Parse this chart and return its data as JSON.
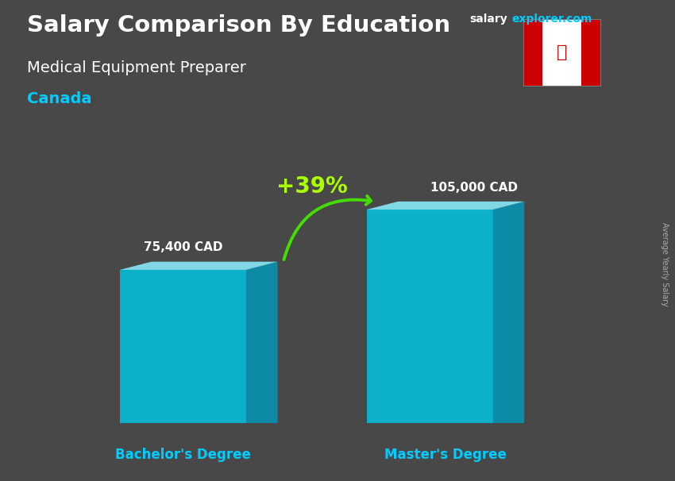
{
  "title_main": "Salary Comparison By Education",
  "title_sub": "Medical Equipment Preparer",
  "country": "Canada",
  "categories": [
    "Bachelor's Degree",
    "Master's Degree"
  ],
  "values": [
    75400,
    105000
  ],
  "value_labels": [
    "75,400 CAD",
    "105,000 CAD"
  ],
  "pct_change": "+39%",
  "bar_color_face": "#00c8e8",
  "bar_color_side": "#0099bb",
  "bar_color_top": "#88e8f8",
  "background_color": "#484848",
  "title_color": "#ffffff",
  "subtitle_color": "#ffffff",
  "country_color": "#00ccff",
  "label_color": "#ffffff",
  "xlabel_color": "#00ccff",
  "pct_color": "#aaff00",
  "arrow_color": "#44dd00",
  "rotated_label": "Average Yearly Salary",
  "rotated_label_color": "#aaaaaa",
  "ylim_max": 130000,
  "bar_alpha": 0.82,
  "site_text1": "salary",
  "site_text2": "explorer.com"
}
